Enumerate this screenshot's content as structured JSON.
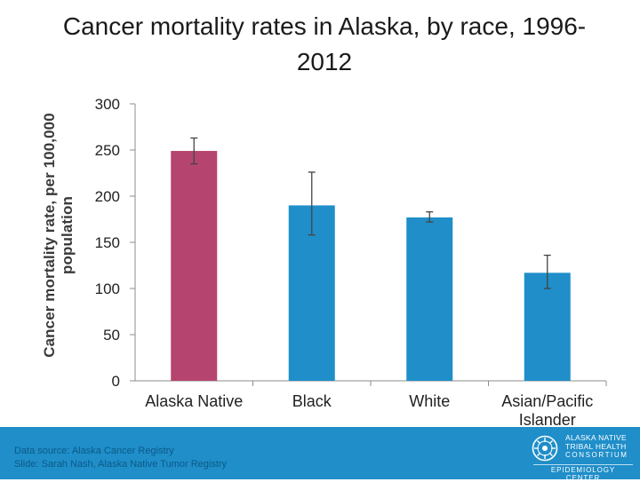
{
  "chart_data": {
    "type": "bar",
    "title": "Cancer mortality rates in Alaska, by race, 1996-2012",
    "ylabel": "Cancer mortality rate, per 100,000 population",
    "xlabel": "",
    "categories": [
      "Alaska Native",
      "Black",
      "White",
      "Asian/Pacific Islander"
    ],
    "values": [
      249,
      190,
      177,
      117
    ],
    "error_low": [
      235,
      158,
      172,
      100
    ],
    "error_high": [
      263,
      226,
      183,
      136
    ],
    "ylim": [
      0,
      300
    ],
    "yticks": [
      "0",
      "50",
      "100",
      "150",
      "200",
      "250",
      "300"
    ],
    "colors": [
      "#b5446e",
      "#1f8ec9",
      "#1f8ec9",
      "#1f8ec9"
    ],
    "grid": false
  },
  "footer": {
    "source_line1": "Data source: Alaska Cancer Registry",
    "source_line2": "Slide: Sarah Nash, Alaska Native Tumor Registry",
    "background": "#1f8ec9"
  },
  "logo": {
    "line1": "ALASKA NATIVE",
    "line2": "TRIBAL HEALTH",
    "line3": "CONSORTIUM",
    "line4": "EPIDEMIOLOGY CENTER"
  }
}
